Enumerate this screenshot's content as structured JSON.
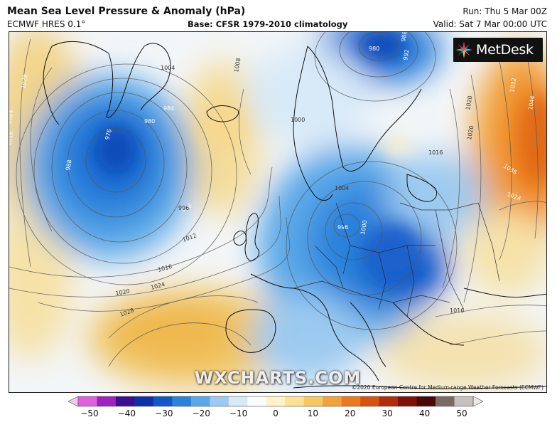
{
  "header": {
    "title": "Mean Sea Level Pressure & Anomaly (hPa)",
    "model": "ECMWF HRES 0.1°",
    "base": "Base: CFSR 1979-2010 climatology",
    "run": "Run: Thu 5 Mar 00Z",
    "valid": "Valid: Sat 7 Mar 00:00 UTC"
  },
  "logo": {
    "text": "MetDesk",
    "icon": "metdesk-star-icon"
  },
  "watermark": "WXCHARTS.COM",
  "copyright": "©2020 European Centre for Medium-range Weather Forecasts (ECMWF)",
  "isobar_labels": [
    "1028",
    "1024",
    "1016",
    "980",
    "976",
    "984",
    "988",
    "996",
    "1004",
    "1008",
    "1012",
    "1000",
    "1020",
    "980",
    "988",
    "992",
    "996",
    "1016",
    "1032",
    "1044",
    "1036",
    "1024",
    "1004",
    "1000",
    "996",
    "1016",
    "1028",
    "1024",
    "1020",
    "1016",
    "1020"
  ],
  "colorbar": {
    "ticks": [
      "−50",
      "−40",
      "−30",
      "−20",
      "−10",
      "0",
      "10",
      "20",
      "30",
      "40",
      "50"
    ],
    "colors": [
      "#f0c8f0",
      "#e060e0",
      "#a020c0",
      "#3a1090",
      "#1030a8",
      "#1058c8",
      "#2a82dc",
      "#5aa8e8",
      "#9ccaf0",
      "#d8eaf8",
      "#fbfbfb",
      "#fff4c8",
      "#fde094",
      "#f8c860",
      "#f2a23a",
      "#ec7a1c",
      "#d65410",
      "#b02c0c",
      "#801008",
      "#4a0806",
      "#7a6a64",
      "#c8c0bc",
      "#ece8e6"
    ]
  }
}
